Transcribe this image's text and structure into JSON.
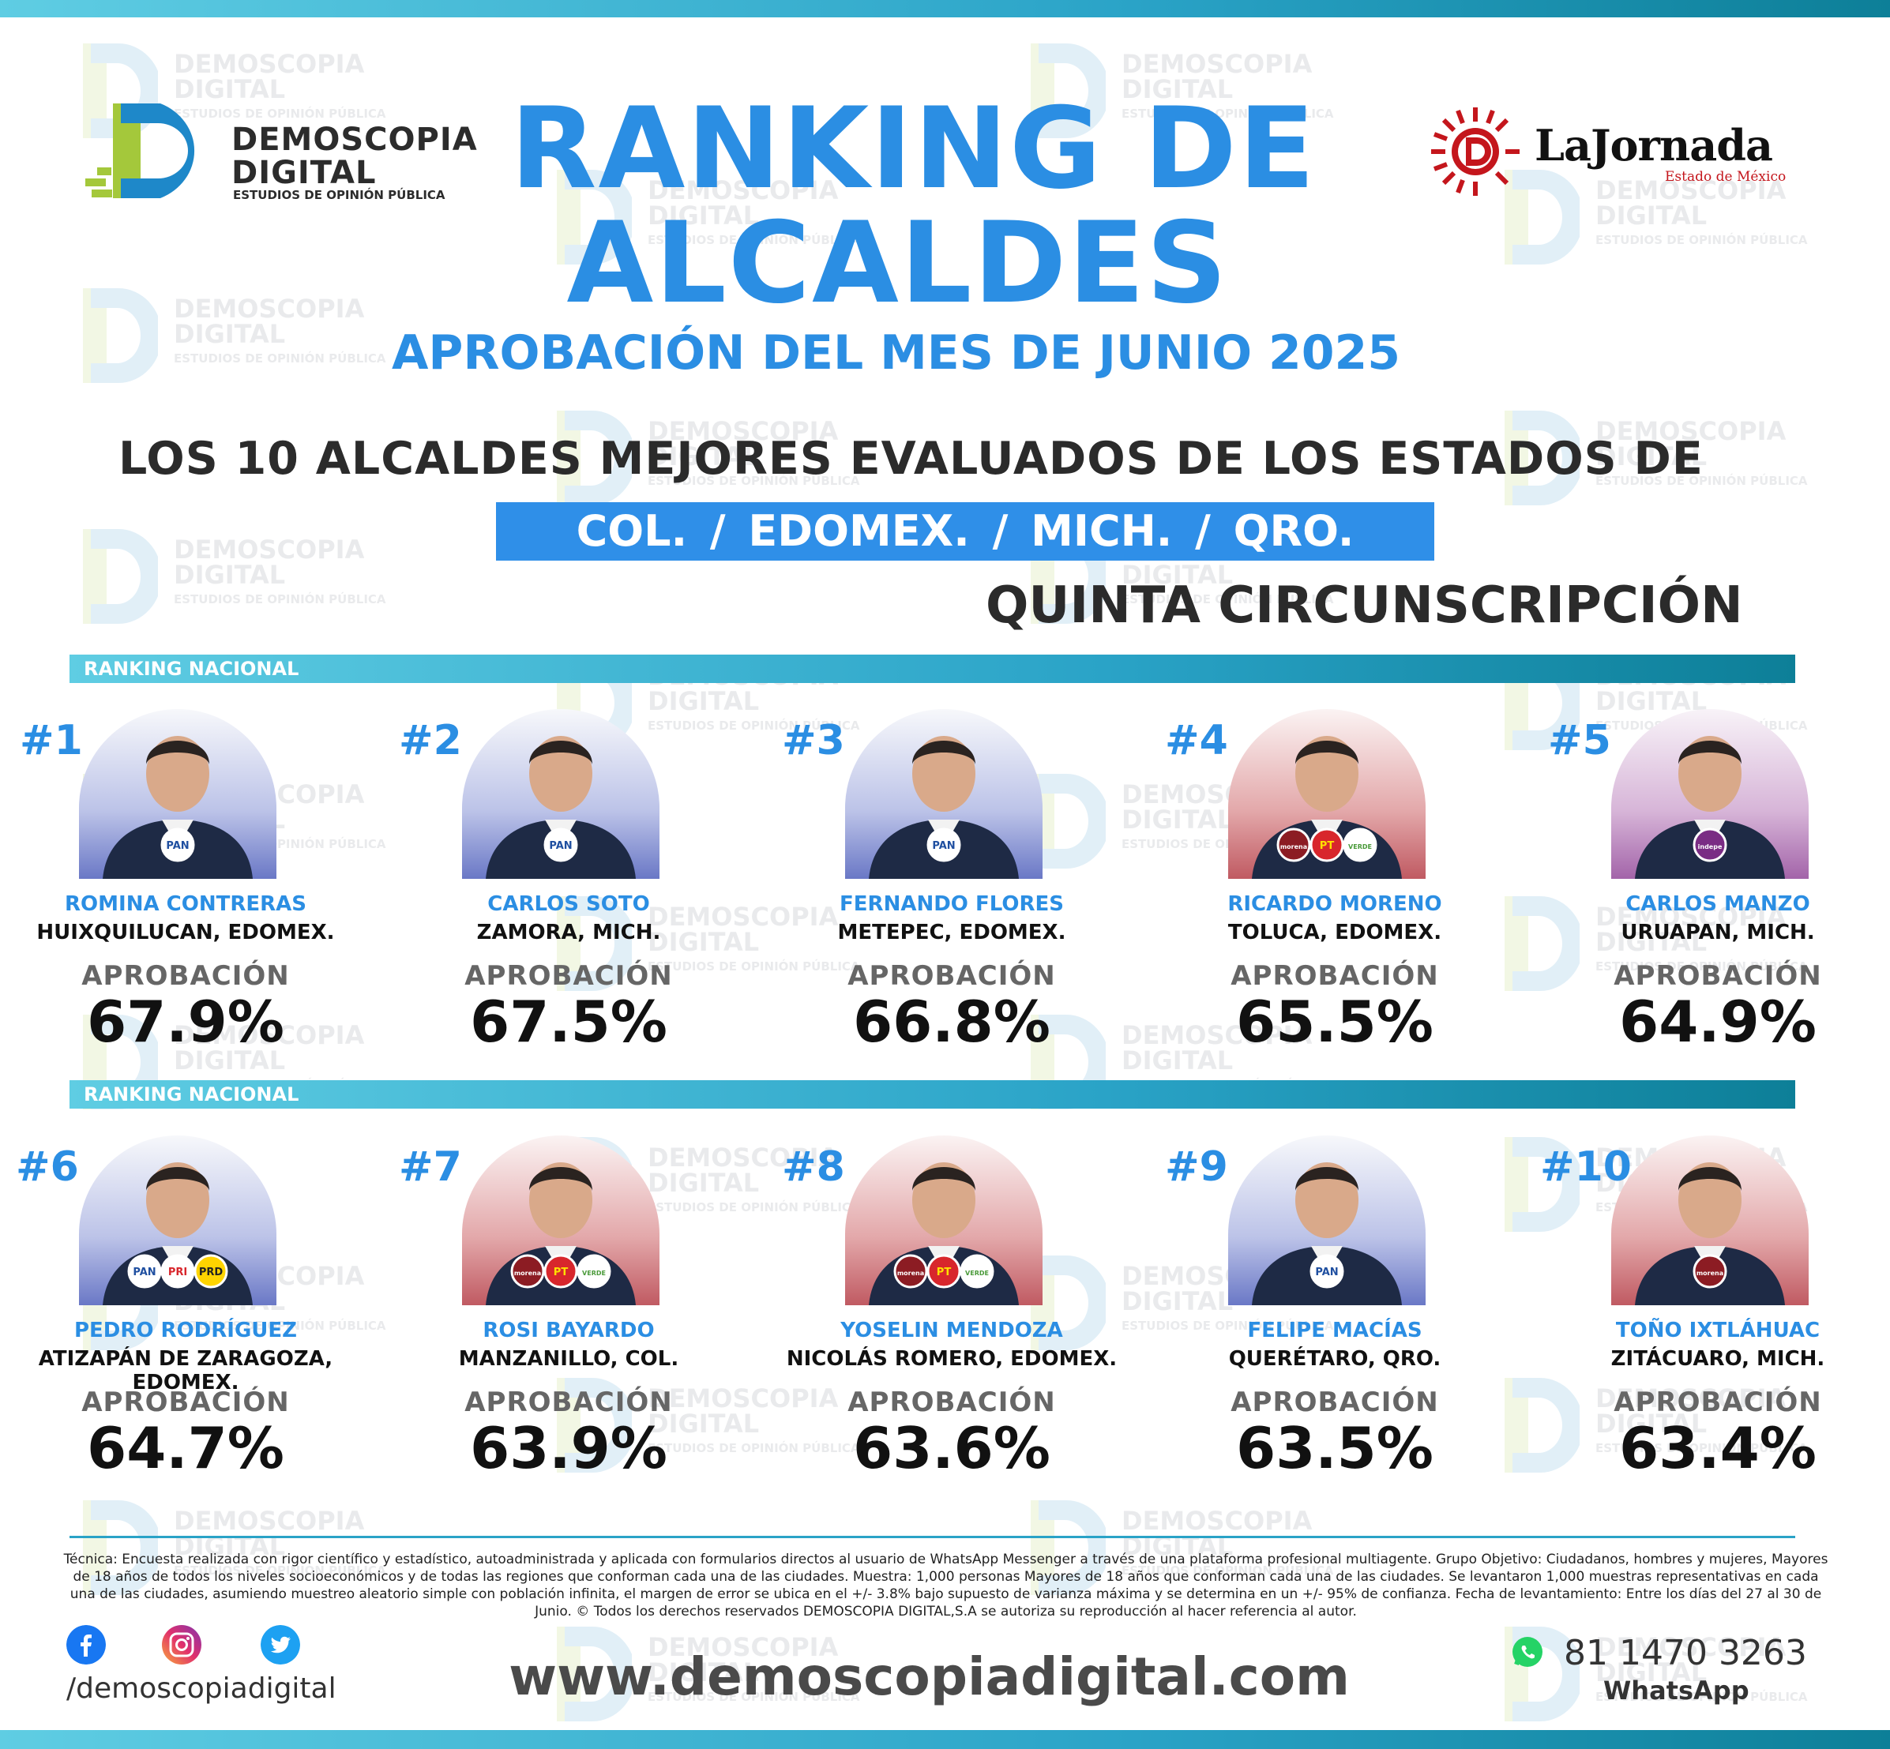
{
  "logo": {
    "line1": "DEMOSCOPIA",
    "line2": "DIGITAL",
    "line3": "ESTUDIOS DE OPINIÓN PÚBLICA"
  },
  "partner": {
    "name": "LaJornada",
    "region": "Estado de México"
  },
  "header": {
    "title_line1": "RANKING DE",
    "title_line2": "ALCALDES",
    "subtitle": "APROBACIÓN DEL MES DE JUNIO 2025",
    "states_heading": "LOS 10 ALCALDES MEJORES EVALUADOS DE LOS ESTADOS DE",
    "states": "COL. /  EDOMEX.  /  MICH.  /  QRO.",
    "circunscripcion": "QUINTA CIRCUNSCRIPCIÓN"
  },
  "ranking_label": "RANKING NACIONAL",
  "approval_label": "APROBACIÓN",
  "mayors": [
    {
      "rank": "#1",
      "name": "ROMINA CONTRERAS",
      "city": "HUIXQUILUCAN, EDOMEX.",
      "approval": "67.9%",
      "bg": "blue",
      "badges": [
        "PAN"
      ]
    },
    {
      "rank": "#2",
      "name": "CARLOS SOTO",
      "city": "ZAMORA, MICH.",
      "approval": "67.5%",
      "bg": "blue",
      "badges": [
        "PAN"
      ]
    },
    {
      "rank": "#3",
      "name": "FERNANDO FLORES",
      "city": "METEPEC, EDOMEX.",
      "approval": "66.8%",
      "bg": "blue",
      "badges": [
        "PAN"
      ]
    },
    {
      "rank": "#4",
      "name": "RICARDO MORENO",
      "city": "TOLUCA, EDOMEX.",
      "approval": "65.5%",
      "bg": "red",
      "badges": [
        "morena",
        "PT",
        "VERDE"
      ]
    },
    {
      "rank": "#5",
      "name": "CARLOS MANZO",
      "city": "URUAPAN, MICH.",
      "approval": "64.9%",
      "bg": "purple",
      "badges": [
        "independiente"
      ]
    },
    {
      "rank": "#6",
      "name": "PEDRO RODRÍGUEZ",
      "city": "ATIZAPÁN DE ZARAGOZA, EDOMEX.",
      "approval": "64.7%",
      "bg": "blue",
      "badges": [
        "PAN",
        "PRI",
        "PRD"
      ]
    },
    {
      "rank": "#7",
      "name": "ROSI BAYARDO",
      "city": "MANZANILLO, COL.",
      "approval": "63.9%",
      "bg": "red",
      "badges": [
        "morena",
        "PT",
        "VERDE"
      ]
    },
    {
      "rank": "#8",
      "name": "YOSELIN MENDOZA",
      "city": "NICOLÁS ROMERO, EDOMEX.",
      "approval": "63.6%",
      "bg": "red",
      "badges": [
        "morena",
        "PT",
        "VERDE"
      ]
    },
    {
      "rank": "#9",
      "name": "FELIPE MACÍAS",
      "city": "QUERÉTARO, QRO.",
      "approval": "63.5%",
      "bg": "blue",
      "badges": [
        "PAN"
      ]
    },
    {
      "rank": "#10",
      "name": "TOÑO IXTLÁHUAC",
      "city": "ZITÁCUARO, MICH.",
      "approval": "63.4%",
      "bg": "red",
      "badges": [
        "morena"
      ]
    }
  ],
  "footer": {
    "tecnica": "Técnica: Encuesta realizada con rigor científico y estadístico, autoadministrada y aplicada con formularios directos al usuario de WhatsApp Messenger a través de una plataforma profesional multiagente. Grupo Objetivo: Ciudadanos, hombres y mujeres, Mayores de 18 años de todos los niveles socioeconómicos y de todas las regiones que conforman cada una de las ciudades. Muestra: 1,000 personas Mayores de 18 años que conforman cada una de las ciudades. Se levantaron 1,000 muestras representativas en cada una de las ciudades, asumiendo muestreo aleatorio simple con población infinita, el margen de error se ubica en el +/- 3.8% bajo supuesto de varianza máxima y se determina en un +/- 95% de confianza. Fecha de levantamiento: Entre los días del 27 al 30 de Junio. ©  Todos los derechos reservados DEMOSCOPIA DIGITAL,S.A se autoriza su reproducción al hacer referencia al autor.",
    "handle": "/demoscopiadigital",
    "website": "www.demoscopiadigital.com",
    "phone": "81 1470 3263",
    "whatsapp_label": "WhatsApp"
  },
  "colors": {
    "accent_blue": "#2b8ee3",
    "bar_teal": "#2aa3c7",
    "pan": "#1f4fa0",
    "morena": "#8c1c23",
    "pt": "#d8262c",
    "verde": "#4a9a3a"
  }
}
